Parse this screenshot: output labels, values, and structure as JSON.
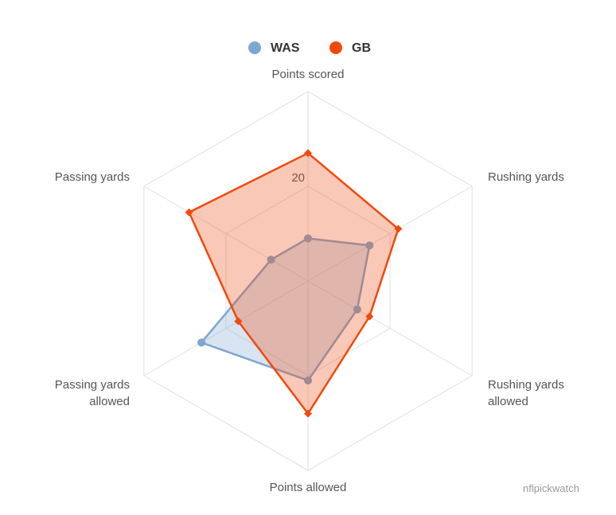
{
  "chart_data": {
    "type": "radar",
    "categories": [
      "Points scored",
      "Rushing yards",
      "Rushing yards allowed",
      "Points allowed",
      "Passing yards allowed",
      "Passing yards"
    ],
    "series": [
      {
        "name": "WAS",
        "color": "#7ea6d0",
        "values": [
          9,
          15,
          12,
          21,
          26,
          9
        ]
      },
      {
        "name": "GB",
        "color": "#f04a0c",
        "values": [
          27,
          22,
          15,
          28,
          17,
          29
        ]
      }
    ],
    "ylim": [
      0,
      40
    ],
    "yticks": [
      20
    ],
    "grid": true,
    "credit": "nflpickwatch"
  }
}
